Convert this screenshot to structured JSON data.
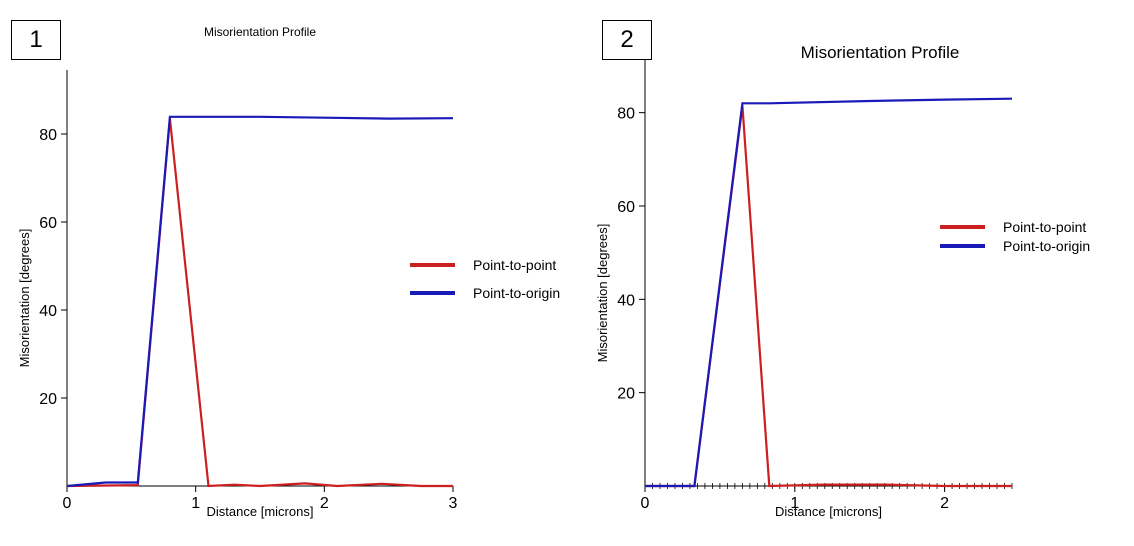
{
  "chart_data": [
    {
      "type": "line",
      "panel_label": "1",
      "title": "Misorientation Profile",
      "xlabel": "Distance [microns]",
      "ylabel": "Misorientation [degrees]",
      "xlim": [
        0,
        3
      ],
      "ylim": [
        0,
        90
      ],
      "x_ticks": [
        0,
        1,
        2,
        3
      ],
      "y_ticks": [
        20,
        40,
        60,
        80
      ],
      "legend_position": "right",
      "series": [
        {
          "name": "Point-to-point",
          "color": "#cc1f1f",
          "x": [
            0,
            0.55,
            0.8,
            1.1,
            1.3,
            1.5,
            1.85,
            2.1,
            2.45,
            2.75,
            3.0
          ],
          "y": [
            0,
            0.2,
            83.5,
            0,
            0.3,
            0,
            0.6,
            0,
            0.5,
            0,
            0
          ]
        },
        {
          "name": "Point-to-origin",
          "color": "#1a1ab8",
          "x": [
            0,
            0.3,
            0.55,
            0.8,
            1.5,
            2.0,
            2.5,
            3.0
          ],
          "y": [
            0,
            0.8,
            0.8,
            83.9,
            83.9,
            83.7,
            83.5,
            83.6
          ]
        }
      ]
    },
    {
      "type": "line",
      "panel_label": "2",
      "title": "Misorientation Profile",
      "xlabel": "Distance [microns]",
      "ylabel": "Misorientation [degrees]",
      "xlim": [
        0,
        2.45
      ],
      "ylim": [
        0,
        87
      ],
      "x_ticks": [
        0,
        1,
        2
      ],
      "y_ticks": [
        20,
        40,
        60,
        80
      ],
      "legend_position": "right",
      "series": [
        {
          "name": "Point-to-point",
          "color": "#cc1f1f",
          "x": [
            0,
            0.33,
            0.65,
            0.83,
            1.2,
            1.6,
            2.0,
            2.45
          ],
          "y": [
            0,
            0,
            81.5,
            0,
            0.3,
            0.3,
            0,
            0
          ]
        },
        {
          "name": "Point-to-origin",
          "color": "#1a1ab8",
          "x": [
            0,
            0.33,
            0.65,
            0.83,
            1.5,
            2.0,
            2.45
          ],
          "y": [
            0,
            0,
            82,
            82,
            82.5,
            82.8,
            83
          ]
        }
      ]
    }
  ]
}
